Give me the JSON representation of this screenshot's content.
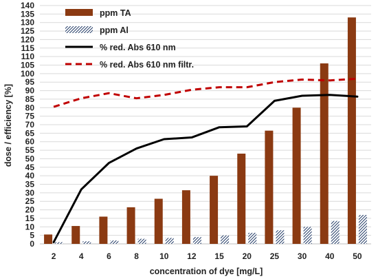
{
  "chart_data": {
    "type": "bar",
    "title": "",
    "xlabel": "concentration of dye [mg/L]",
    "ylabel": "dose /  efficiency  [%]",
    "ylim": [
      0,
      140
    ],
    "ytick_step": 5,
    "grid": true,
    "legend_position": "top-left",
    "categories": [
      "2",
      "4",
      "6",
      "8",
      "10",
      "12",
      "15",
      "20",
      "25",
      "30",
      "40",
      "50"
    ],
    "series": [
      {
        "name": "ppm TA",
        "kind": "bar",
        "color": "#8B3A12",
        "values": [
          5.5,
          10.5,
          16,
          21.5,
          26.5,
          31.5,
          40,
          53,
          66.5,
          80,
          106,
          133
        ]
      },
      {
        "name": "ppm Al",
        "kind": "bar",
        "pattern": "diagonal-hatch",
        "color": "#1F3864",
        "values": [
          1,
          1.5,
          2,
          3,
          3.5,
          4,
          5,
          6.5,
          8,
          10,
          13.5,
          17
        ]
      },
      {
        "name": "% red. Abs 610 nm",
        "kind": "line",
        "color": "#000000",
        "values": [
          1,
          32,
          47.5,
          56,
          61.5,
          62.5,
          68.5,
          69,
          84,
          87,
          87.5,
          86.5
        ]
      },
      {
        "name": "% red. Abs 610 nm filtr.",
        "kind": "line",
        "style": "dashed",
        "color": "#C00000",
        "values": [
          80.5,
          85.5,
          88.5,
          85.5,
          87.5,
          90.5,
          92,
          92,
          95,
          96.5,
          96,
          97
        ]
      }
    ]
  }
}
